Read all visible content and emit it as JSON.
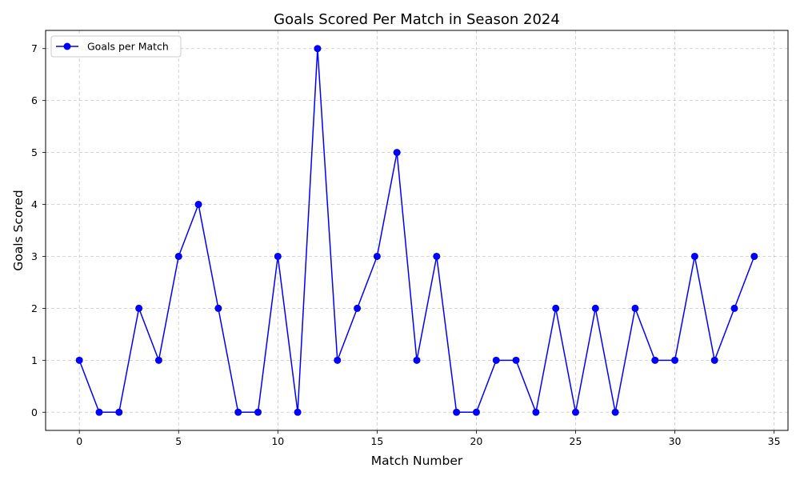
{
  "chart_data": {
    "type": "line",
    "title": "Goals Scored Per Match in Season 2024",
    "xlabel": "Match Number",
    "ylabel": "Goals Scored",
    "xlim": [
      -1.7,
      35.7
    ],
    "ylim": [
      -0.35,
      7.35
    ],
    "xticks": [
      0,
      5,
      10,
      15,
      20,
      25,
      30,
      35
    ],
    "yticks": [
      0,
      1,
      2,
      3,
      4,
      5,
      6,
      7
    ],
    "grid": true,
    "legend_position": "upper-left",
    "series": [
      {
        "name": "Goals per Match",
        "color": "#0000ff",
        "marker": "circle",
        "x": [
          0,
          1,
          2,
          3,
          4,
          5,
          6,
          7,
          8,
          9,
          10,
          11,
          12,
          13,
          14,
          15,
          16,
          17,
          18,
          19,
          20,
          21,
          22,
          23,
          24,
          25,
          26,
          27,
          28,
          29,
          30,
          31,
          32,
          33,
          34
        ],
        "y": [
          1,
          0,
          0,
          2,
          1,
          3,
          4,
          2,
          0,
          0,
          3,
          0,
          7,
          1,
          2,
          3,
          5,
          1,
          3,
          0,
          0,
          1,
          1,
          0,
          2,
          0,
          2,
          0,
          2,
          1,
          1,
          3,
          1,
          2,
          3
        ]
      }
    ]
  }
}
